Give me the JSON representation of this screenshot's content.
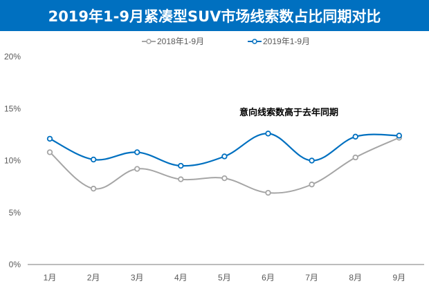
{
  "title": "2019年1-9月紧凑型SUV市场线索数占比同期对比",
  "legend": [
    {
      "label": "2018年1-9月",
      "color": "#A5A5A5"
    },
    {
      "label": "2019年1-9月",
      "color": "#0070C0"
    }
  ],
  "annotation": "意向线索数高于去年同期",
  "colors": {
    "banner": "#0070C0",
    "series_2018": "#A5A5A5",
    "series_2019": "#0070C0",
    "axis": "#A6A6A6"
  },
  "chart_data": {
    "type": "line",
    "title": "2019年1-9月紧凑型SUV市场线索数占比同期对比",
    "xlabel": "",
    "ylabel": "",
    "categories": [
      "1月",
      "2月",
      "3月",
      "4月",
      "5月",
      "6月",
      "7月",
      "8月",
      "9月"
    ],
    "series": [
      {
        "name": "2018年1-9月",
        "values": [
          10.8,
          7.3,
          9.2,
          8.2,
          8.3,
          6.9,
          7.7,
          10.3,
          12.2
        ]
      },
      {
        "name": "2019年1-9月",
        "values": [
          12.1,
          10.1,
          10.8,
          9.5,
          10.4,
          12.6,
          10.0,
          12.3,
          12.4
        ]
      }
    ],
    "yticks": [
      "0%",
      "5%",
      "10%",
      "15%",
      "20%"
    ],
    "ylim": [
      0,
      20
    ],
    "unit": "%",
    "grid": false,
    "legend_position": "top",
    "smooth": true,
    "annotations": [
      "意向线索数高于去年同期"
    ]
  }
}
